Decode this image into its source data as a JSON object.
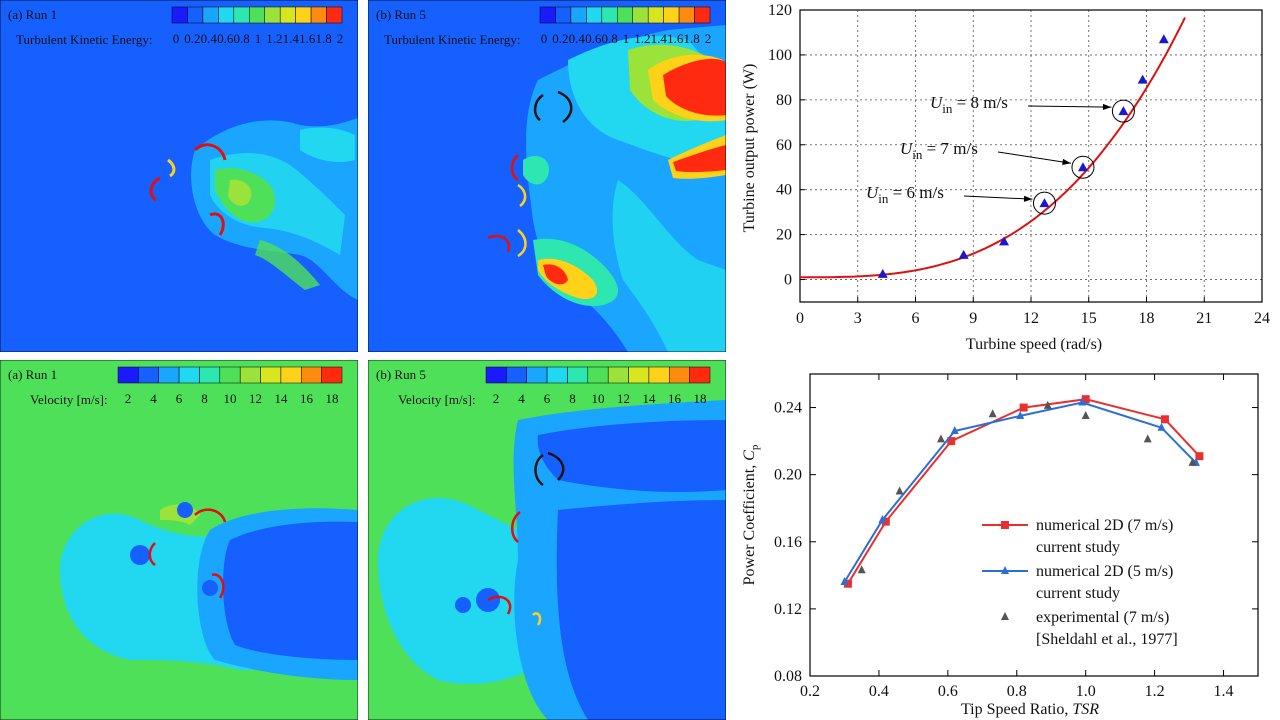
{
  "contours": {
    "tke_run1": {
      "tag": "(a) Run 1",
      "label": "Turbulent Kinetic Energy:",
      "ticks": [
        "0",
        "0.2",
        "0.4",
        "0.6",
        "0.8",
        "1",
        "1.2",
        "1.4",
        "1.6",
        "1.8",
        "2"
      ]
    },
    "tke_run5": {
      "tag": "(b) Run 5",
      "label": "Turbulent Kinetic Energy:",
      "ticks": [
        "0",
        "0.2",
        "0.4",
        "0.6",
        "0.8",
        "1",
        "1.2",
        "1.4",
        "1.6",
        "1.8",
        "2"
      ]
    },
    "vel_run1": {
      "tag": "(a) Run 1",
      "label": "Velocity [m/s]:",
      "ticks": [
        "2",
        "4",
        "6",
        "8",
        "10",
        "12",
        "14",
        "16",
        "18"
      ]
    },
    "vel_run5": {
      "tag": "(b) Run 5",
      "label": "Velocity [m/s]:",
      "ticks": [
        "2",
        "4",
        "6",
        "8",
        "10",
        "12",
        "14",
        "16",
        "18"
      ]
    },
    "palette": [
      "#1a1aff",
      "#1560ff",
      "#1aa6ff",
      "#22d8f0",
      "#2ee6b0",
      "#4fe05a",
      "#9be23a",
      "#d8e61e",
      "#ffd21a",
      "#ff8a10",
      "#ff2a10"
    ]
  },
  "chart_data": [
    {
      "type": "scatter",
      "xlabel": "Turbine speed (rad/s)",
      "ylabel": "Turbine output power (W)",
      "xlim": [
        0,
        24
      ],
      "ylim": [
        -10,
        120
      ],
      "xticks": [
        0,
        3,
        6,
        9,
        12,
        15,
        18,
        21,
        24
      ],
      "yticks": [
        0,
        20,
        40,
        60,
        80,
        100,
        120
      ],
      "grid": true,
      "series": [
        {
          "kind": "points",
          "color": "#1a1acc",
          "x": [
            4.3,
            8.5,
            10.6,
            12.7,
            14.7,
            16.8,
            17.8,
            18.9
          ],
          "y": [
            2.5,
            11,
            17,
            34,
            50,
            75,
            89,
            107
          ]
        },
        {
          "kind": "fit-curve",
          "color": "#dd1111",
          "x": [
            0,
            2,
            4,
            6,
            8,
            10,
            12,
            14,
            16,
            17,
            18,
            19,
            20
          ],
          "y": [
            1,
            1.2,
            2.4,
            5.2,
            9.8,
            17.1,
            27.3,
            41.1,
            60,
            71.3,
            84,
            98.2,
            116
          ]
        }
      ],
      "annotations": [
        {
          "text_main": "U",
          "text_sub": "in",
          "text_rest": " = 8 m/s",
          "x": 16.8,
          "y": 75
        },
        {
          "text_main": "U",
          "text_sub": "in",
          "text_rest": " = 7 m/s",
          "x": 14.7,
          "y": 50
        },
        {
          "text_main": "U",
          "text_sub": "in",
          "text_rest": " = 6 m/s",
          "x": 12.7,
          "y": 34
        }
      ]
    },
    {
      "type": "line",
      "xlabel_main": "Tip Speed Ratio, ",
      "xlabel_ital": "TSR",
      "ylabel_main": "Power Coefficient, ",
      "ylabel_ital": "C",
      "ylabel_sub": "p",
      "xlim": [
        0.2,
        1.5
      ],
      "ylim": [
        0.08,
        0.26
      ],
      "xticks": [
        "0.2",
        "0.4",
        "0.6",
        "0.8",
        "1.0",
        "1.2",
        "1.4"
      ],
      "yticks": [
        "0.08",
        "0.12",
        "0.16",
        "0.20",
        "0.24"
      ],
      "series": [
        {
          "name": "numerical 2D (7 m/s)",
          "name2": "current study",
          "color": "#e8302f",
          "marker": "square",
          "x": [
            0.31,
            0.42,
            0.61,
            0.82,
            1.0,
            1.23,
            1.33
          ],
          "y": [
            0.135,
            0.172,
            0.22,
            0.24,
            0.245,
            0.233,
            0.211
          ]
        },
        {
          "name": "numerical 2D (5 m/s)",
          "name2": "current study",
          "color": "#2a6fd8",
          "marker": "triangle",
          "x": [
            0.3,
            0.41,
            0.62,
            0.81,
            0.99,
            1.22,
            1.32
          ],
          "y": [
            0.136,
            0.173,
            0.226,
            0.235,
            0.243,
            0.228,
            0.207
          ]
        },
        {
          "name": "experimental (7 m/s)",
          "name2": "[Sheldahl et al., 1977]",
          "color": "#555555",
          "marker": "triangle",
          "x": [
            0.35,
            0.46,
            0.58,
            0.73,
            0.89,
            1.0,
            1.18,
            1.31
          ],
          "y": [
            0.143,
            0.19,
            0.221,
            0.236,
            0.241,
            0.235,
            0.221,
            0.207
          ]
        }
      ]
    }
  ]
}
